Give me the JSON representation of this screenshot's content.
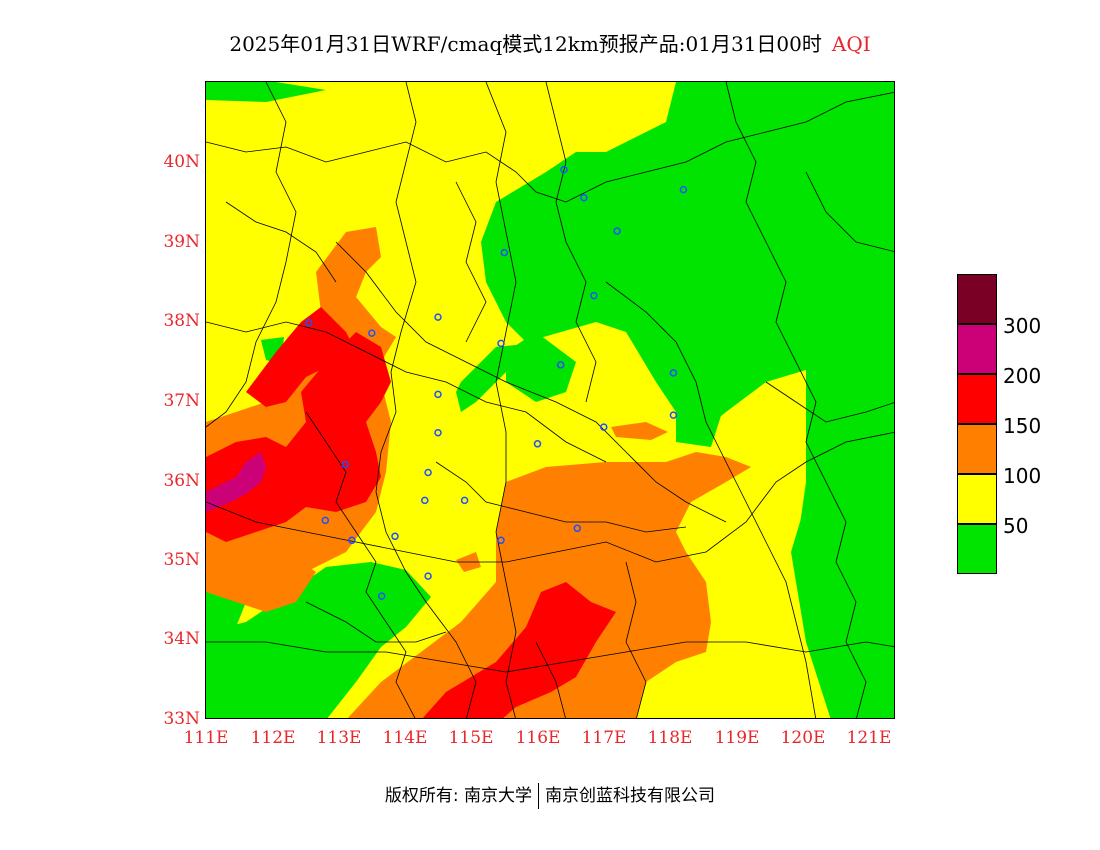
{
  "title": {
    "main": "2025年01月31日WRF/cmaq模式12km预报产品:01月31日00时",
    "variable": "AQI"
  },
  "axes": {
    "lat_labels": [
      "40N",
      "39N",
      "38N",
      "37N",
      "36N",
      "35N",
      "34N",
      "33N"
    ],
    "lon_labels": [
      "111E",
      "112E",
      "113E",
      "114E",
      "115E",
      "116E",
      "117E",
      "118E",
      "119E",
      "120E",
      "121E"
    ],
    "lat_range": [
      33,
      41
    ],
    "lon_range": [
      111,
      121.4
    ]
  },
  "legend": {
    "labels": [
      "300",
      "200",
      "150",
      "100",
      "50"
    ],
    "colors": [
      "#7a0026",
      "#cc0077",
      "#ff0000",
      "#ff8000",
      "#ffff00",
      "#00e400"
    ]
  },
  "footer": {
    "copyright": "版权所有: 南京大学",
    "company": "南京创蓝科技有限公司"
  },
  "chart_data": {
    "type": "heatmap",
    "variable": "AQI",
    "levels": [
      0,
      50,
      100,
      150,
      200,
      300
    ],
    "stations": [
      {
        "lon": 116.4,
        "lat": 39.9
      },
      {
        "lon": 116.7,
        "lat": 39.55
      },
      {
        "lon": 118.2,
        "lat": 39.65
      },
      {
        "lon": 117.2,
        "lat": 39.13
      },
      {
        "lon": 115.5,
        "lat": 38.86
      },
      {
        "lon": 116.85,
        "lat": 38.32
      },
      {
        "lon": 112.55,
        "lat": 37.98
      },
      {
        "lon": 113.5,
        "lat": 37.85
      },
      {
        "lon": 114.5,
        "lat": 38.05
      },
      {
        "lon": 115.45,
        "lat": 37.72
      },
      {
        "lon": 116.35,
        "lat": 37.45
      },
      {
        "lon": 118.05,
        "lat": 37.35
      },
      {
        "lon": 118.05,
        "lat": 36.82
      },
      {
        "lon": 114.5,
        "lat": 37.08
      },
      {
        "lon": 114.5,
        "lat": 36.6
      },
      {
        "lon": 117.0,
        "lat": 36.67
      },
      {
        "lon": 116.0,
        "lat": 36.46
      },
      {
        "lon": 113.1,
        "lat": 36.2
      },
      {
        "lon": 114.35,
        "lat": 36.1
      },
      {
        "lon": 114.3,
        "lat": 35.75
      },
      {
        "lon": 114.9,
        "lat": 35.75
      },
      {
        "lon": 112.8,
        "lat": 35.5
      },
      {
        "lon": 116.6,
        "lat": 35.4
      },
      {
        "lon": 113.2,
        "lat": 35.25
      },
      {
        "lon": 113.85,
        "lat": 35.3
      },
      {
        "lon": 115.45,
        "lat": 35.25
      },
      {
        "lon": 114.35,
        "lat": 34.8
      },
      {
        "lon": 113.65,
        "lat": 34.55
      }
    ]
  }
}
